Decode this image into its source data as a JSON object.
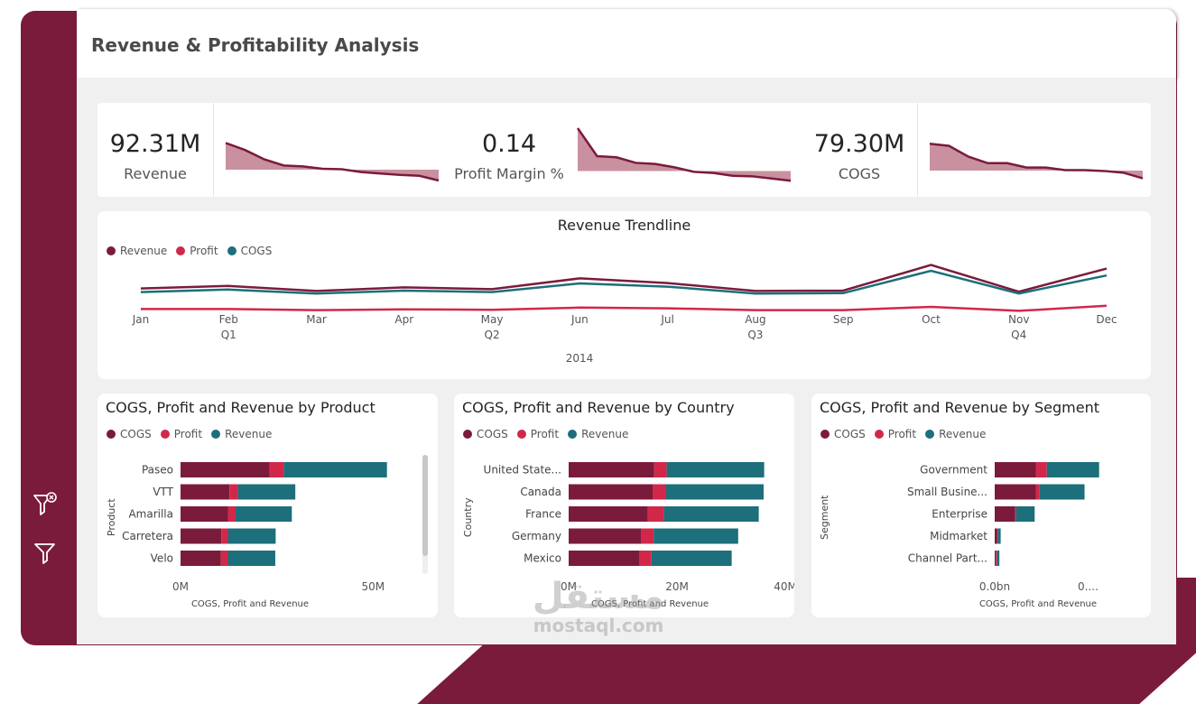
{
  "header": {
    "title": "Revenue & Profitability Analysis"
  },
  "colors": {
    "maroon": "#7b1b3c",
    "profit": "#d1284a",
    "teal": "#1c6f7b",
    "sparkfill": "#c9919f"
  },
  "icons": {
    "clear_filter": "filter-clear-icon",
    "filter": "filter-icon"
  },
  "kpis": [
    {
      "value": "92.31M",
      "label": "Revenue",
      "trend": [
        0.2,
        0.35,
        0.55,
        0.68,
        0.7,
        0.75,
        0.76,
        0.82,
        0.85,
        0.88,
        0.9,
        1.0
      ]
    },
    {
      "value": "0.14",
      "label": "Profit Margin %",
      "trend": [
        0.0,
        0.5,
        0.52,
        0.62,
        0.64,
        0.7,
        0.78,
        0.8,
        0.85,
        0.86,
        0.9,
        0.94
      ]
    },
    {
      "value": "79.30M",
      "label": "COGS",
      "trend": [
        0.15,
        0.2,
        0.45,
        0.6,
        0.6,
        0.7,
        0.7,
        0.76,
        0.76,
        0.78,
        0.82,
        0.95
      ]
    }
  ],
  "trend": {
    "title": "Revenue Trendline",
    "year": "2014",
    "months": [
      "Jan",
      "Feb",
      "Mar",
      "Apr",
      "May",
      "Jun",
      "Jul",
      "Aug",
      "Sep",
      "Oct",
      "Nov",
      "Dec"
    ],
    "quarters": [
      {
        "label": "Q1",
        "month": 1
      },
      {
        "label": "Q2",
        "month": 4
      },
      {
        "label": "Q3",
        "month": 7
      },
      {
        "label": "Q4",
        "month": 10
      }
    ],
    "legend": [
      {
        "name": "Revenue",
        "color": "#7b1b3c"
      },
      {
        "name": "Profit",
        "color": "#d1284a"
      },
      {
        "name": "COGS",
        "color": "#1c6f7b"
      }
    ]
  },
  "bar_charts": [
    {
      "title": "COGS, Profit and Revenue by Product",
      "axis_title": "Product",
      "xlabel": "COGS, Profit and Revenue",
      "legend": [
        "COGS",
        "Profit",
        "Revenue"
      ],
      "ticks": [
        {
          "label": "0M",
          "v": 0
        },
        {
          "label": "50M",
          "v": 50
        }
      ],
      "scroll": true
    },
    {
      "title": "COGS, Profit and Revenue by Country",
      "axis_title": "Country",
      "xlabel": "COGS, Profit and Revenue",
      "legend": [
        "COGS",
        "Profit",
        "Revenue"
      ],
      "ticks": [
        {
          "label": "0M",
          "v": 0
        },
        {
          "label": "20M",
          "v": 20
        },
        {
          "label": "40M",
          "v": 40
        }
      ],
      "scroll": false
    },
    {
      "title": "COGS, Profit and Revenue by Segment",
      "axis_title": "Segment",
      "xlabel": "COGS, Profit and Revenue",
      "legend": [
        "COGS",
        "Profit",
        "Revenue"
      ],
      "ticks": [
        {
          "label": "0.0bn",
          "v": 0
        },
        {
          "label": "0....",
          "v": 0.1
        }
      ],
      "scroll": false
    }
  ],
  "chart_data": [
    {
      "type": "line",
      "title": "Revenue Trendline",
      "x": [
        "Jan",
        "Feb",
        "Mar",
        "Apr",
        "May",
        "Jun",
        "Jul",
        "Aug",
        "Sep",
        "Oct",
        "Nov",
        "Dec"
      ],
      "series": [
        {
          "name": "Revenue",
          "values": [
            6.6,
            7.3,
            5.9,
            6.9,
            6.4,
            9.4,
            8.1,
            5.9,
            6.0,
            13.1,
            5.7,
            12.1
          ]
        },
        {
          "name": "Profit",
          "values": [
            0.9,
            0.9,
            0.6,
            0.8,
            0.7,
            1.3,
            1.1,
            0.6,
            0.6,
            1.5,
            0.4,
            1.8
          ]
        },
        {
          "name": "COGS",
          "values": [
            5.6,
            6.3,
            5.2,
            6.0,
            5.6,
            8.0,
            7.1,
            5.2,
            5.3,
            11.5,
            5.2,
            10.2
          ]
        }
      ],
      "ylim": [
        0,
        14
      ]
    },
    {
      "type": "bar",
      "title": "COGS, Profit and Revenue by Product",
      "categories": [
        "Paseo",
        "VTT",
        "Amarilla",
        "Carretera",
        "Velo"
      ],
      "series": [
        {
          "name": "COGS",
          "values": [
            23.1,
            12.7,
            12.3,
            10.6,
            10.5
          ]
        },
        {
          "name": "Profit",
          "values": [
            3.7,
            2.2,
            2.0,
            1.7,
            1.8
          ]
        },
        {
          "name": "Revenue",
          "values": [
            26.8,
            14.9,
            14.6,
            12.4,
            12.3
          ]
        }
      ],
      "xlim": [
        0,
        60
      ]
    },
    {
      "type": "bar",
      "title": "COGS, Profit and Revenue by Country",
      "categories": [
        "United State...",
        "Canada",
        "France",
        "Germany",
        "Mexico"
      ],
      "series": [
        {
          "name": "COGS",
          "values": [
            15.8,
            15.5,
            14.6,
            13.4,
            13.0
          ]
        },
        {
          "name": "Profit",
          "values": [
            2.3,
            2.5,
            3.0,
            2.3,
            2.3
          ]
        },
        {
          "name": "Revenue",
          "values": [
            18.0,
            18.0,
            17.5,
            15.6,
            14.8
          ]
        }
      ],
      "xlim": [
        0,
        41
      ]
    },
    {
      "type": "bar",
      "title": "COGS, Profit and Revenue by Segment",
      "categories": [
        "Government",
        "Small Busine...",
        "Enterprise",
        "Midmarket",
        "Channel Part..."
      ],
      "series": [
        {
          "name": "COGS",
          "values": [
            0.044,
            0.044,
            0.022,
            0.0024,
            0.0012
          ]
        },
        {
          "name": "Profit",
          "values": [
            0.0118,
            0.0042,
            0.0,
            0.0007,
            0.0013
          ]
        },
        {
          "name": "Revenue",
          "values": [
            0.056,
            0.048,
            0.02,
            0.0032,
            0.0025
          ]
        }
      ],
      "xlim": [
        0,
        0.145
      ]
    }
  ],
  "watermark": {
    "arabic": "مستقل",
    "latin": "mostaql.com"
  }
}
